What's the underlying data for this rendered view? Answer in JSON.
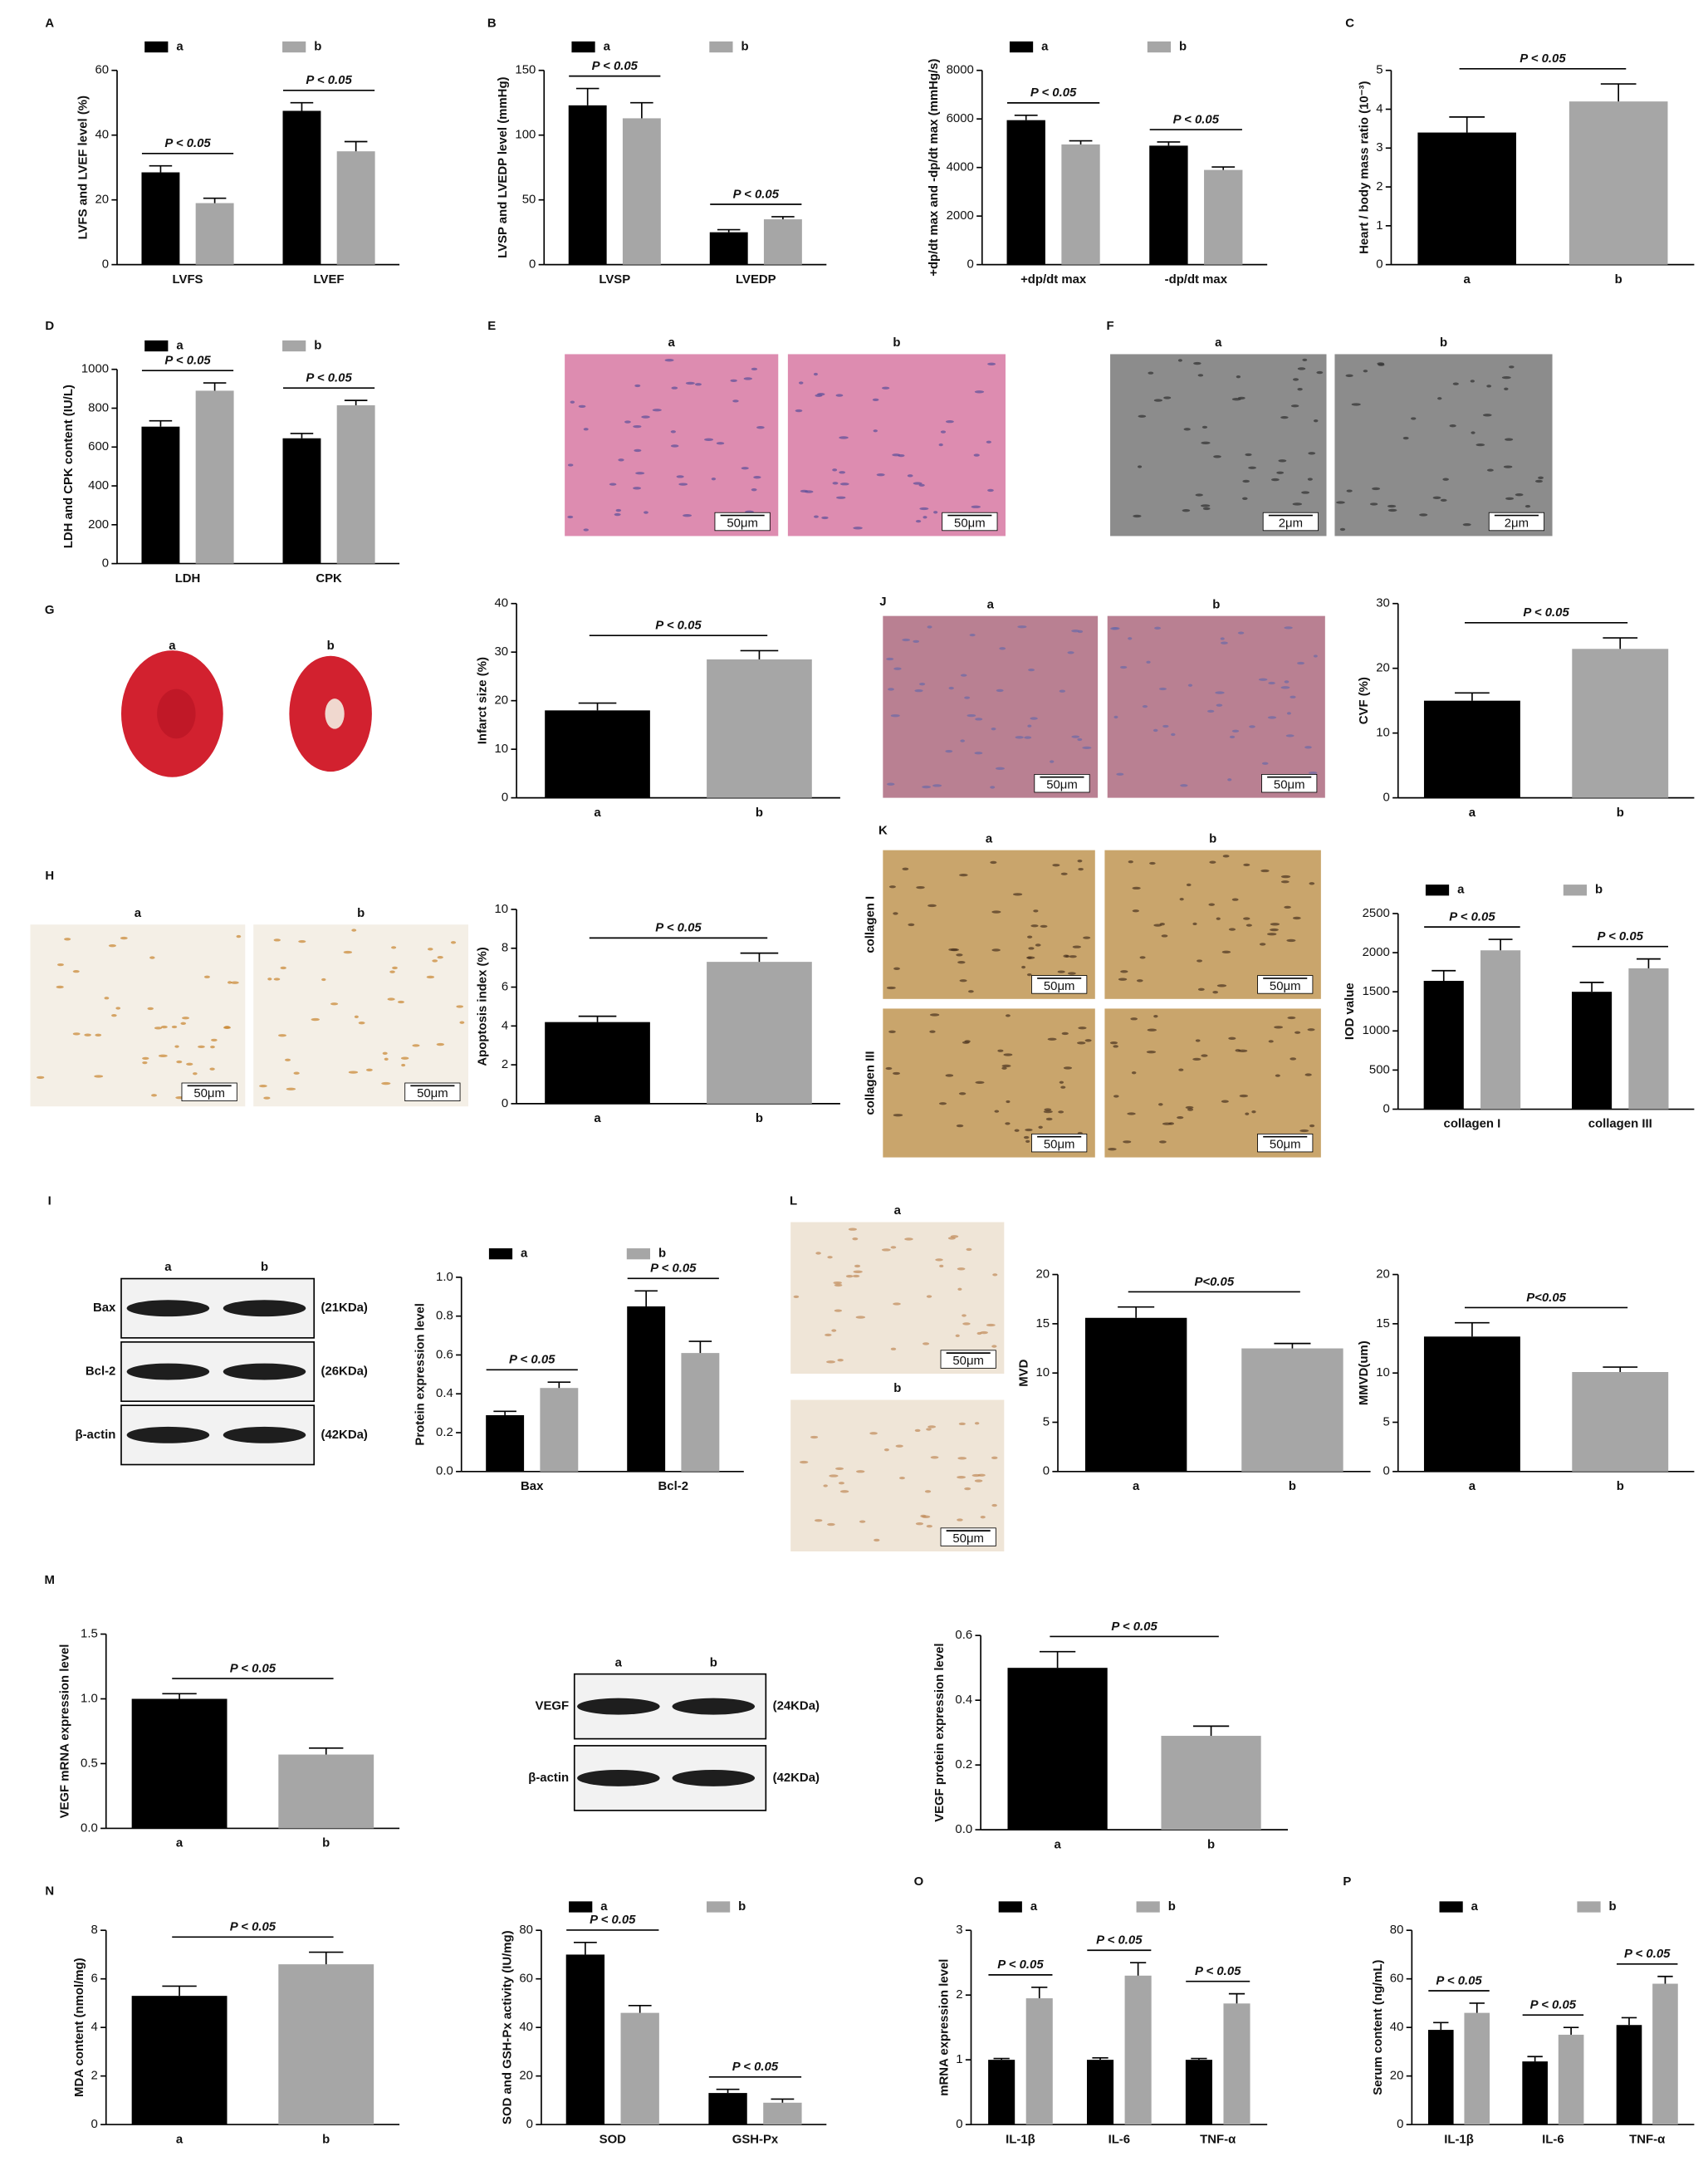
{
  "panel_labels": [
    "A",
    "B",
    "C",
    "D",
    "E",
    "F",
    "G",
    "J",
    "H",
    "K",
    "I",
    "L",
    "M",
    "N",
    "O",
    "P"
  ],
  "chart_data": [
    {
      "type": "bar",
      "y_label": "LVFS and LVEF level (%)",
      "categories": [
        "LVFS",
        "LVEF"
      ],
      "series": [
        {
          "name": "a",
          "color": "#000000",
          "values": [
            28.5,
            47.5
          ],
          "errors": [
            2,
            2.5
          ]
        },
        {
          "name": "b",
          "color": "#a6a6a6",
          "values": [
            19,
            35
          ],
          "errors": [
            1.5,
            3
          ]
        }
      ],
      "ylim": [
        0,
        60
      ],
      "yticks": [
        0,
        20,
        40,
        60
      ],
      "annotations": [
        "P < 0.05",
        "P < 0.05"
      ]
    },
    {
      "type": "bar",
      "y_label": "LVSP and LVEDP level (mmHg)",
      "categories": [
        "LVSP",
        "LVEDP"
      ],
      "series": [
        {
          "name": "a",
          "color": "#000000",
          "values": [
            123,
            25
          ],
          "errors": [
            13,
            2
          ]
        },
        {
          "name": "b",
          "color": "#a6a6a6",
          "values": [
            113,
            35
          ],
          "errors": [
            12,
            2
          ]
        }
      ],
      "ylim": [
        0,
        150
      ],
      "yticks": [
        0,
        50,
        100,
        150
      ],
      "annotations": [
        "P < 0.05",
        "P < 0.05"
      ]
    },
    {
      "type": "bar",
      "y_label": "+dp/dt max and -dp/dt max (mmHg/s)",
      "categories": [
        "+dp/dt max",
        "-dp/dt max"
      ],
      "series": [
        {
          "name": "a",
          "color": "#000000",
          "values": [
            5950,
            4900
          ],
          "errors": [
            200,
            150
          ]
        },
        {
          "name": "b",
          "color": "#a6a6a6",
          "values": [
            4950,
            3900
          ],
          "errors": [
            150,
            120
          ]
        }
      ],
      "ylim": [
        0,
        8000
      ],
      "yticks": [
        0,
        2000,
        4000,
        6000,
        8000
      ],
      "annotations": [
        "P < 0.05",
        "P < 0.05"
      ]
    },
    {
      "type": "bar",
      "y_label": "Heart / body mass ratio (10⁻³)",
      "categories": [
        "a",
        "b"
      ],
      "values": [
        3.4,
        4.2
      ],
      "errors": [
        0.4,
        0.45
      ],
      "colors": [
        "#000000",
        "#a6a6a6"
      ],
      "ylim": [
        0,
        5
      ],
      "yticks": [
        0,
        1,
        2,
        3,
        4,
        5
      ],
      "annotations": [
        "P < 0.05"
      ]
    },
    {
      "type": "bar",
      "y_label": "LDH and CPK content (IU/L)",
      "categories": [
        "LDH",
        "CPK"
      ],
      "series": [
        {
          "name": "a",
          "color": "#000000",
          "values": [
            705,
            645
          ],
          "errors": [
            30,
            25
          ]
        },
        {
          "name": "b",
          "color": "#a6a6a6",
          "values": [
            890,
            815
          ],
          "errors": [
            40,
            25
          ]
        }
      ],
      "ylim": [
        0,
        1000
      ],
      "yticks": [
        0,
        200,
        400,
        600,
        800,
        1000
      ],
      "annotations": [
        "P < 0.05",
        "P < 0.05"
      ]
    },
    {
      "type": "bar",
      "y_label": "Infarct size (%)",
      "categories": [
        "a",
        "b"
      ],
      "values": [
        18,
        28.5
      ],
      "errors": [
        1.5,
        1.8
      ],
      "colors": [
        "#000000",
        "#a6a6a6"
      ],
      "ylim": [
        0,
        40
      ],
      "yticks": [
        0,
        10,
        20,
        30,
        40
      ],
      "annotations": [
        "P < 0.05"
      ]
    },
    {
      "type": "bar",
      "y_label": "CVF (%)",
      "categories": [
        "a",
        "b"
      ],
      "values": [
        15,
        23
      ],
      "errors": [
        1.2,
        1.7
      ],
      "colors": [
        "#000000",
        "#a6a6a6"
      ],
      "ylim": [
        0,
        30
      ],
      "yticks": [
        0,
        10,
        20,
        30
      ],
      "annotations": [
        "P < 0.05"
      ]
    },
    {
      "type": "bar",
      "y_label": "Apoptosis index (%)",
      "categories": [
        "a",
        "b"
      ],
      "values": [
        4.2,
        7.3
      ],
      "errors": [
        0.3,
        0.45
      ],
      "colors": [
        "#000000",
        "#a6a6a6"
      ],
      "ylim": [
        0,
        10
      ],
      "yticks": [
        0,
        2,
        4,
        6,
        8,
        10
      ],
      "annotations": [
        "P < 0.05"
      ]
    },
    {
      "type": "bar",
      "y_label": "IOD value",
      "categories": [
        "collagen I",
        "collagen III"
      ],
      "series": [
        {
          "name": "a",
          "color": "#000000",
          "values": [
            1640,
            1500
          ],
          "errors": [
            130,
            120
          ]
        },
        {
          "name": "b",
          "color": "#a6a6a6",
          "values": [
            2030,
            1800
          ],
          "errors": [
            140,
            120
          ]
        }
      ],
      "ylim": [
        0,
        2500
      ],
      "yticks": [
        0,
        500,
        1000,
        1500,
        2000,
        2500
      ],
      "annotations": [
        "P < 0.05",
        "P < 0.05"
      ]
    },
    {
      "type": "bar",
      "y_label": "Protein expression level",
      "categories": [
        "Bax",
        "Bcl-2"
      ],
      "series": [
        {
          "name": "a",
          "color": "#000000",
          "values": [
            0.29,
            0.85
          ],
          "errors": [
            0.02,
            0.08
          ]
        },
        {
          "name": "b",
          "color": "#a6a6a6",
          "values": [
            0.43,
            0.61
          ],
          "errors": [
            0.03,
            0.06
          ]
        }
      ],
      "ylim": [
        0,
        1
      ],
      "yticks": [
        {
          "value": 0,
          "label": "0.0"
        },
        0.2,
        0.4,
        0.6,
        0.8,
        {
          "value": 1,
          "label": "1.0"
        }
      ],
      "annotations": [
        "P < 0.05",
        "P < 0.05"
      ]
    },
    {
      "type": "bar",
      "y_label": "MVD",
      "categories": [
        "a",
        "b"
      ],
      "values": [
        15.6,
        12.5
      ],
      "errors": [
        1.1,
        0.5
      ],
      "colors": [
        "#000000",
        "#a6a6a6"
      ],
      "ylim": [
        0,
        20
      ],
      "yticks": [
        0,
        5,
        10,
        15,
        20
      ],
      "annotations": [
        "P<0.05"
      ],
      "annotation_bold": true
    },
    {
      "type": "bar",
      "y_label": "MMVD(um)",
      "categories": [
        "a",
        "b"
      ],
      "values": [
        13.7,
        10.1
      ],
      "errors": [
        1.4,
        0.5
      ],
      "colors": [
        "#000000",
        "#a6a6a6"
      ],
      "ylim": [
        0,
        20
      ],
      "yticks": [
        0,
        5,
        10,
        15,
        20
      ],
      "annotations": [
        "P<0.05"
      ],
      "annotation_bold": true
    },
    {
      "type": "bar",
      "y_label": "VEGF mRNA expression level",
      "categories": [
        "a",
        "b"
      ],
      "values": [
        1.0,
        0.57
      ],
      "errors": [
        0.04,
        0.05
      ],
      "colors": [
        "#000000",
        "#a6a6a6"
      ],
      "ylim": [
        0,
        1.5
      ],
      "yticks": [
        {
          "value": 0,
          "label": "0.0"
        },
        0.5,
        {
          "value": 1,
          "label": "1.0"
        },
        1.5
      ],
      "annotations": [
        "P < 0.05"
      ]
    },
    {
      "type": "bar",
      "y_label": "VEGF protein expression level",
      "categories": [
        "a",
        "b"
      ],
      "values": [
        0.5,
        0.29
      ],
      "errors": [
        0.05,
        0.03
      ],
      "colors": [
        "#000000",
        "#a6a6a6"
      ],
      "ylim": [
        0,
        0.6
      ],
      "yticks": [
        {
          "value": 0,
          "label": "0.0"
        },
        0.2,
        0.4,
        0.6
      ],
      "annotations": [
        "P < 0.05"
      ]
    },
    {
      "type": "bar",
      "y_label": "MDA content (nmol/mg)",
      "categories": [
        "a",
        "b"
      ],
      "values": [
        5.3,
        6.6
      ],
      "errors": [
        0.4,
        0.5
      ],
      "colors": [
        "#000000",
        "#a6a6a6"
      ],
      "ylim": [
        0,
        8
      ],
      "yticks": [
        0,
        2,
        4,
        6,
        8
      ],
      "annotations": [
        "P < 0.05"
      ]
    },
    {
      "type": "bar",
      "y_label": "SOD and GSH-Px activity (IU/mg)",
      "categories": [
        "SOD",
        "GSH-Px"
      ],
      "series": [
        {
          "name": "a",
          "color": "#000000",
          "values": [
            70,
            13
          ],
          "errors": [
            5,
            1.5
          ]
        },
        {
          "name": "b",
          "color": "#a6a6a6",
          "values": [
            46,
            9
          ],
          "errors": [
            3,
            1.5
          ]
        }
      ],
      "ylim": [
        0,
        80
      ],
      "yticks": [
        0,
        20,
        40,
        60,
        80
      ],
      "annotations": [
        "P < 0.05",
        "P < 0.05"
      ]
    },
    {
      "type": "bar",
      "y_label": "mRNA expression level",
      "categories": [
        "IL-1β",
        "IL-6",
        "TNF-α"
      ],
      "series": [
        {
          "name": "a",
          "color": "#000000",
          "values": [
            1,
            1,
            1
          ],
          "errors": [
            0.02,
            0.03,
            0.02
          ]
        },
        {
          "name": "b",
          "color": "#a6a6a6",
          "values": [
            1.95,
            2.3,
            1.87
          ],
          "errors": [
            0.17,
            0.2,
            0.15
          ]
        }
      ],
      "ylim": [
        0,
        3
      ],
      "yticks": [
        0,
        1,
        2,
        3
      ],
      "annotations": [
        "P < 0.05",
        "P < 0.05",
        "P < 0.05"
      ]
    },
    {
      "type": "bar",
      "y_label": "Serum content (ng/mL)",
      "categories": [
        "IL-1β",
        "IL-6",
        "TNF-α"
      ],
      "series": [
        {
          "name": "a",
          "color": "#000000",
          "values": [
            39,
            26,
            41
          ],
          "errors": [
            3,
            2,
            3
          ]
        },
        {
          "name": "b",
          "color": "#a6a6a6",
          "values": [
            46,
            37,
            58
          ],
          "errors": [
            4,
            3,
            3
          ]
        }
      ],
      "ylim": [
        0,
        80
      ],
      "yticks": [
        0,
        20,
        40,
        60,
        80
      ],
      "annotations": [
        "P < 0.05",
        "P < 0.05",
        "P < 0.05"
      ]
    }
  ],
  "micrographs": {
    "E": {
      "labels": [
        "a",
        "b"
      ],
      "scale_bars": [
        "50μm",
        "50μm"
      ]
    },
    "F": {
      "labels": [
        "a",
        "b"
      ],
      "scale_bars": [
        "2μm",
        "2μm"
      ]
    },
    "G": {
      "labels": [
        "a",
        "b"
      ]
    },
    "H": {
      "labels": [
        "a",
        "b"
      ],
      "scale_bars": [
        "50μm",
        "50μm"
      ]
    },
    "J": {
      "labels": [
        "a",
        "b"
      ],
      "scale_bars": [
        "50μm",
        "50μm"
      ]
    },
    "K": {
      "labels": [
        "a",
        "b"
      ],
      "rows": [
        "collagen I",
        "collagen III"
      ],
      "scale_bars": [
        "50μm",
        "50μm",
        "50μm",
        "50μm"
      ]
    },
    "L": {
      "labels": [
        "a",
        "b"
      ],
      "scale_bars": [
        "50μm",
        "50μm"
      ]
    }
  },
  "blots": {
    "I": {
      "lanes": [
        "a",
        "b"
      ],
      "proteins": [
        "Bax",
        "Bcl-2",
        "β-actin"
      ],
      "sizes": [
        "(21KDa)",
        "(26KDa)",
        "(42KDa)"
      ]
    },
    "M": {
      "lanes": [
        "a",
        "b"
      ],
      "proteins": [
        "VEGF",
        "β-actin"
      ],
      "sizes": [
        "(24KDa)",
        "(42KDa)"
      ]
    }
  }
}
